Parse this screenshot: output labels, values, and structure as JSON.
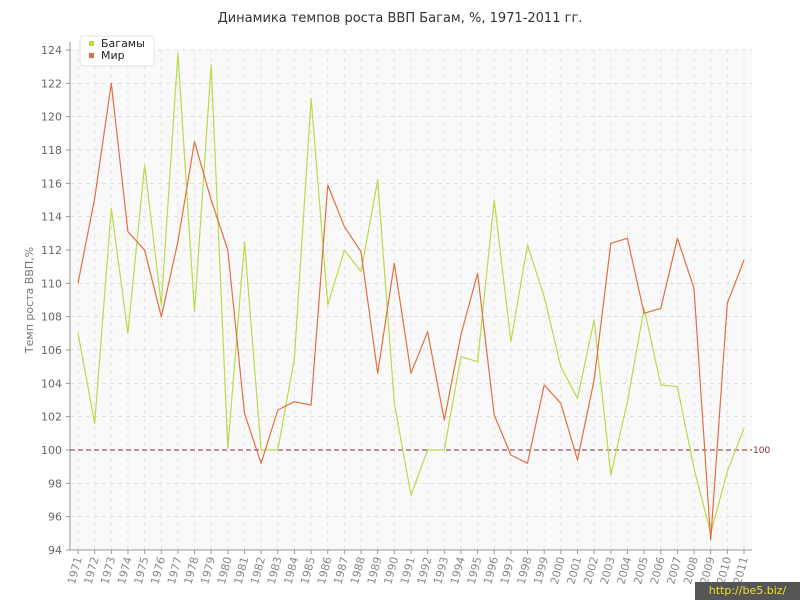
{
  "chart_data": {
    "type": "line",
    "title": "Динамика темпов роста ВВП Багам, %, 1971-2011 гг.",
    "xlabel": "",
    "ylabel": "Темп роста ВВП,%",
    "ylim": [
      94,
      124
    ],
    "yticks": [
      94,
      96,
      98,
      100,
      102,
      104,
      106,
      108,
      110,
      112,
      114,
      116,
      118,
      120,
      122,
      124
    ],
    "grid": true,
    "legend_position": "top-left",
    "x": [
      1971,
      1972,
      1973,
      1974,
      1975,
      1976,
      1977,
      1978,
      1979,
      1980,
      1981,
      1982,
      1983,
      1984,
      1985,
      1986,
      1987,
      1988,
      1989,
      1990,
      1991,
      1992,
      1993,
      1994,
      1995,
      1996,
      1997,
      1998,
      1999,
      2000,
      2001,
      2002,
      2003,
      2004,
      2005,
      2006,
      2007,
      2008,
      2009,
      2010,
      2011
    ],
    "reference_line": {
      "value": 100,
      "label": "100",
      "color": "#8a2b3a"
    },
    "series": [
      {
        "name": "Багамы",
        "color": "#b7dc4a",
        "values": [
          107.0,
          101.6,
          114.5,
          107.0,
          117.1,
          108.7,
          123.8,
          108.3,
          123.1,
          100.1,
          112.5,
          100.0,
          100.0,
          105.5,
          121.1,
          108.7,
          112.0,
          110.7,
          116.2,
          102.8,
          97.3,
          100.0,
          100.0,
          105.6,
          105.3,
          115.0,
          106.5,
          112.3,
          109.2,
          105.0,
          103.1,
          107.8,
          98.5,
          102.9,
          108.5,
          103.9,
          103.8,
          98.9,
          95.0,
          98.7,
          101.3
        ]
      },
      {
        "name": "Мир",
        "color": "#e07040",
        "values": [
          110.0,
          115.1,
          122.0,
          113.1,
          112.0,
          108.0,
          112.5,
          118.5,
          115.0,
          112.0,
          102.2,
          99.2,
          102.4,
          102.9,
          102.7,
          115.9,
          113.4,
          111.9,
          104.6,
          111.2,
          104.6,
          107.1,
          101.8,
          106.9,
          110.6,
          102.1,
          99.7,
          99.2,
          103.9,
          102.8,
          99.4,
          104.2,
          112.4,
          112.7,
          108.2,
          108.5,
          112.7,
          109.7,
          94.6,
          108.8,
          111.4
        ]
      }
    ]
  },
  "watermark": "http://be5.biz/"
}
